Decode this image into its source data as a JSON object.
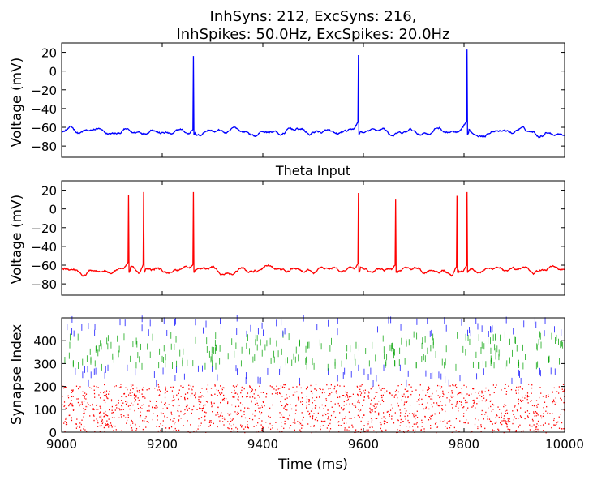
{
  "figure": {
    "title_line1": "InhSyns: 212, ExcSyns: 216,",
    "title_line2": "InhSpikes: 50.0Hz, ExcSpikes: 20.0Hz"
  },
  "chart_data": [
    {
      "type": "line",
      "title": "",
      "xlabel": "",
      "ylabel": "Voltage (mV)",
      "xlim": [
        9000,
        10000
      ],
      "ylim": [
        -92,
        30
      ],
      "yticks": [
        20,
        0,
        -20,
        -40,
        -60,
        -80
      ],
      "x_ticklabels_shown": false,
      "grid": false,
      "color": "#0000ff",
      "baseline_mv": -65,
      "spike_times_ms": [
        9262,
        9590,
        9806
      ],
      "spike_peaks_mv": [
        16,
        17,
        23
      ],
      "series": [
        {
          "values_description_source": "membrane potential trace"
        }
      ]
    },
    {
      "type": "line",
      "title": "Theta Input",
      "xlabel": "",
      "ylabel": "Voltage (mV)",
      "xlim": [
        9000,
        10000
      ],
      "ylim": [
        -92,
        30
      ],
      "yticks": [
        20,
        0,
        -20,
        -40,
        -60,
        -80
      ],
      "x_ticklabels_shown": false,
      "grid": false,
      "color": "#ff0000",
      "baseline_mv": -65,
      "spike_times_ms": [
        9133,
        9163,
        9262,
        9590,
        9664,
        9786,
        9806
      ],
      "spike_peaks_mv": [
        15,
        18,
        18,
        17,
        10,
        14,
        18
      ],
      "series": [
        {
          "values_description_source": "membrane potential trace"
        }
      ]
    },
    {
      "type": "scatter",
      "title": "",
      "xlabel": "Time (ms)",
      "ylabel": "Synapse Index",
      "xlim": [
        9000,
        10000
      ],
      "ylim": [
        0,
        500
      ],
      "xticks": [
        9000,
        9200,
        9400,
        9600,
        9800,
        10000
      ],
      "yticks": [
        0,
        100,
        200,
        300,
        400
      ],
      "grid": false,
      "groups": [
        {
          "index_range": [
            0,
            212
          ],
          "color": "#ff0000",
          "marker": "dot",
          "density": "dense"
        },
        {
          "index_range": [
            212,
            284
          ],
          "color": "#0000ff",
          "marker": "tick",
          "density": "sparse"
        },
        {
          "index_range": [
            284,
            428
          ],
          "color": "#00a000",
          "marker": "tick",
          "density": "medium"
        },
        {
          "index_range": [
            428,
            500
          ],
          "color": "#0000ff",
          "marker": "tick",
          "density": "sparse"
        }
      ]
    }
  ]
}
